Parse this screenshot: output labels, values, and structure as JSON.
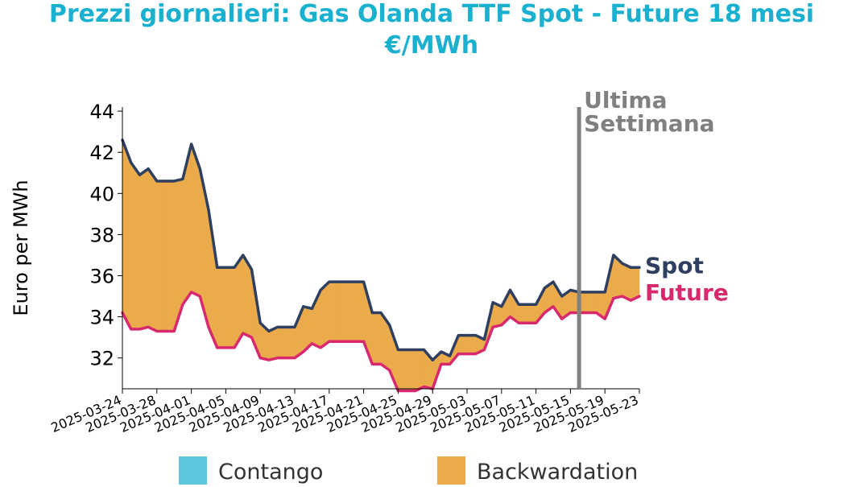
{
  "chart_data": {
    "type": "area",
    "title_line1": "Prezzi giornalieri: Gas Olanda TTF Spot - Future 18 mesi",
    "title_line2": "€/MWh",
    "ylabel": "Euro per MWh",
    "xlabel": "",
    "ylim": [
      30.5,
      44.2
    ],
    "yticks": [
      32,
      34,
      36,
      38,
      40,
      42,
      44
    ],
    "xticks": [
      "2025-03-24",
      "2025-03-28",
      "2025-04-01",
      "2025-04-05",
      "2025-04-09",
      "2025-04-13",
      "2025-04-17",
      "2025-04-21",
      "2025-04-25",
      "2025-04-29",
      "2025-05-03",
      "2025-05-07",
      "2025-05-11",
      "2025-05-15",
      "2025-05-19",
      "2025-05-23"
    ],
    "x": [
      "2025-03-24",
      "2025-03-25",
      "2025-03-26",
      "2025-03-27",
      "2025-03-28",
      "2025-03-29",
      "2025-03-30",
      "2025-03-31",
      "2025-04-01",
      "2025-04-02",
      "2025-04-03",
      "2025-04-04",
      "2025-04-05",
      "2025-04-06",
      "2025-04-07",
      "2025-04-08",
      "2025-04-09",
      "2025-04-10",
      "2025-04-11",
      "2025-04-12",
      "2025-04-13",
      "2025-04-14",
      "2025-04-15",
      "2025-04-16",
      "2025-04-17",
      "2025-04-18",
      "2025-04-19",
      "2025-04-20",
      "2025-04-21",
      "2025-04-22",
      "2025-04-23",
      "2025-04-24",
      "2025-04-25",
      "2025-04-26",
      "2025-04-27",
      "2025-04-28",
      "2025-04-29",
      "2025-04-30",
      "2025-05-01",
      "2025-05-02",
      "2025-05-03",
      "2025-05-04",
      "2025-05-05",
      "2025-05-06",
      "2025-05-07",
      "2025-05-08",
      "2025-05-09",
      "2025-05-10",
      "2025-05-11",
      "2025-05-12",
      "2025-05-13",
      "2025-05-14",
      "2025-05-15",
      "2025-05-16",
      "2025-05-17",
      "2025-05-18",
      "2025-05-19",
      "2025-05-20",
      "2025-05-21",
      "2025-05-22",
      "2025-05-23"
    ],
    "series": [
      {
        "name": "Spot",
        "color": "#2e3f5f",
        "values": [
          42.6,
          41.5,
          40.9,
          41.2,
          40.6,
          40.6,
          40.6,
          40.7,
          42.4,
          41.2,
          39.2,
          36.4,
          36.4,
          36.4,
          37.0,
          36.3,
          33.7,
          33.3,
          33.5,
          33.5,
          33.5,
          34.5,
          34.4,
          35.3,
          35.7,
          35.7,
          35.7,
          35.7,
          35.7,
          34.2,
          34.2,
          33.6,
          32.4,
          32.4,
          32.4,
          32.4,
          31.9,
          32.3,
          32.1,
          33.1,
          33.1,
          33.1,
          32.9,
          34.7,
          34.5,
          35.3,
          34.6,
          34.6,
          34.6,
          35.4,
          35.7,
          35.0,
          35.3,
          35.2,
          35.2,
          35.2,
          35.2,
          37.0,
          36.6,
          36.4,
          36.4
        ]
      },
      {
        "name": "Future",
        "color": "#d8286e",
        "values": [
          34.2,
          33.4,
          33.4,
          33.5,
          33.3,
          33.3,
          33.3,
          34.6,
          35.2,
          35.0,
          33.5,
          32.5,
          32.5,
          32.5,
          33.2,
          33.0,
          32.0,
          31.9,
          32.0,
          32.0,
          32.0,
          32.3,
          32.7,
          32.5,
          32.8,
          32.8,
          32.8,
          32.8,
          32.8,
          31.7,
          31.7,
          31.4,
          30.4,
          30.4,
          30.4,
          30.6,
          30.5,
          31.7,
          31.7,
          32.2,
          32.2,
          32.2,
          32.4,
          33.5,
          33.6,
          34.0,
          33.7,
          33.7,
          33.7,
          34.2,
          34.5,
          33.9,
          34.2,
          34.2,
          34.2,
          34.2,
          33.9,
          34.9,
          35.0,
          34.8,
          35.0
        ]
      }
    ],
    "fill": {
      "spot_above_future": "#ebab4b",
      "spot_below_future": "#5bc6dc"
    },
    "vline": {
      "x": "2025-05-16",
      "label_line1": "Ultima",
      "label_line2": "Settimana",
      "color": "#808080"
    },
    "legend": [
      {
        "label": "Contango",
        "color": "#5bc6dc"
      },
      {
        "label": "Backwardation",
        "color": "#ebab4b"
      }
    ],
    "legend_position": "bottom",
    "grid": false,
    "title_color": "#1ab0d0"
  }
}
